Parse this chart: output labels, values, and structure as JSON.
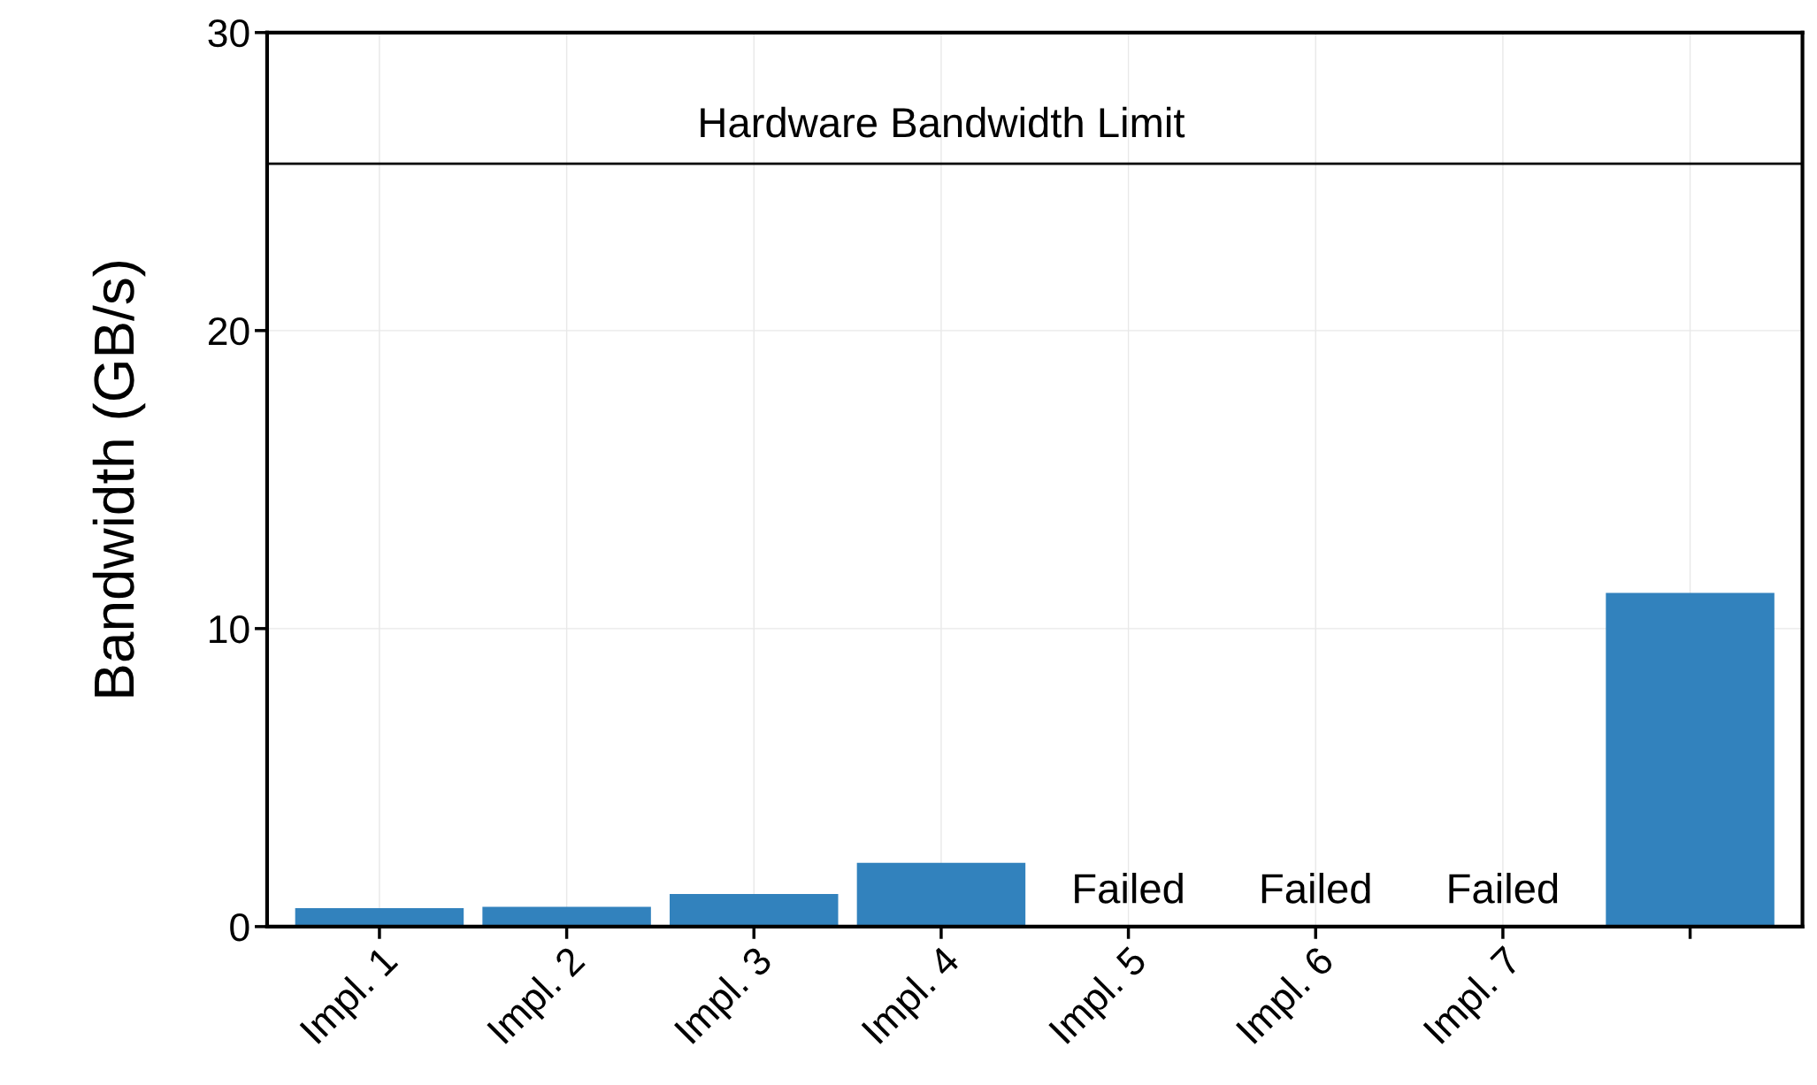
{
  "chart_data": {
    "type": "bar",
    "ylabel": "Bandwidth (GB/s)",
    "categories": [
      "Impl. 1",
      "Impl. 2",
      "Impl. 3",
      "Impl. 4",
      "Impl. 5",
      "Impl. 6",
      "Impl. 7",
      null
    ],
    "values": [
      0.62,
      0.66,
      1.09,
      2.14,
      null,
      null,
      null,
      11.2
    ],
    "color": "#3282bd",
    "ylim": [
      0,
      30
    ],
    "yticks": [
      0,
      10,
      20,
      30
    ],
    "grid": true,
    "ref_lines": [
      {
        "axis": "y",
        "value": 25.6,
        "label": "Hardware Bandwidth Limit",
        "color": "#000000"
      }
    ],
    "annotations": [
      "Failed",
      "Failed",
      "Failed"
    ]
  }
}
